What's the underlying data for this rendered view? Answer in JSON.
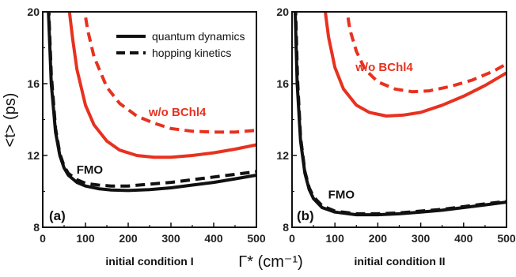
{
  "chart_data": {
    "type": "line",
    "ylabel": "<t> (ps)",
    "xlabel": "Γ* (cm⁻¹)",
    "colors": {
      "FMO": "#111111",
      "w/o BChl4": "#e8311f"
    },
    "legend": {
      "placement": "top-right of panel (a)",
      "entries": [
        {
          "label": "quantum dynamics",
          "style": "solid"
        },
        {
          "label": "hopping kinetics",
          "style": "dashed"
        }
      ]
    },
    "panels": [
      {
        "panel_label": "(a)",
        "condition_label": "initial condition I",
        "xlim": [
          0,
          500
        ],
        "ylim": [
          8,
          20
        ],
        "xticks": [
          "0",
          "100",
          "200",
          "300",
          "400",
          "500"
        ],
        "yticks": [
          "8",
          "12",
          "16",
          "20"
        ],
        "annotations": [
          {
            "text": "FMO",
            "color": "#111111",
            "at": [
              110,
              11.0
            ]
          },
          {
            "text": "w/o BChl4",
            "color": "#e8311f",
            "at": [
              315,
              14.2
            ]
          }
        ],
        "series": [
          {
            "group": "FMO",
            "style": "solid",
            "x": [
              10,
              15,
              20,
              30,
              40,
              50,
              60,
              80,
              100,
              130,
              160,
              200,
              250,
              300,
              350,
              400,
              450,
              500
            ],
            "y": [
              22,
              19.0,
              16.0,
              13.3,
              12.0,
              11.3,
              10.9,
              10.5,
              10.3,
              10.15,
              10.08,
              10.05,
              10.1,
              10.2,
              10.35,
              10.5,
              10.7,
              10.9
            ]
          },
          {
            "group": "FMO",
            "style": "dashed",
            "x": [
              12,
              15,
              20,
              30,
              40,
              50,
              60,
              80,
              100,
              130,
              160,
              200,
              250,
              300,
              350,
              400,
              450,
              500
            ],
            "y": [
              22,
              19.5,
              16.5,
              13.5,
              12.1,
              11.4,
              11.0,
              10.65,
              10.45,
              10.35,
              10.3,
              10.3,
              10.4,
              10.5,
              10.65,
              10.8,
              10.95,
              11.1
            ]
          },
          {
            "group": "w/o BChl4",
            "style": "solid",
            "x": [
              60,
              70,
              80,
              100,
              120,
              150,
              180,
              220,
              260,
              300,
              350,
              400,
              450,
              500
            ],
            "y": [
              20.5,
              18.5,
              16.8,
              14.8,
              13.7,
              12.8,
              12.3,
              12.0,
              11.9,
              11.9,
              12.0,
              12.15,
              12.35,
              12.6
            ]
          },
          {
            "group": "w/o BChl4",
            "style": "dashed",
            "x": [
              95,
              105,
              120,
              150,
              180,
              220,
              260,
              300,
              350,
              400,
              450,
              500
            ],
            "y": [
              20.5,
              19.0,
              17.5,
              15.8,
              14.9,
              14.2,
              13.8,
              13.5,
              13.35,
              13.3,
              13.3,
              13.4
            ]
          }
        ]
      },
      {
        "panel_label": "(b)",
        "condition_label": "initial condition II",
        "xlim": [
          0,
          500
        ],
        "ylim": [
          8,
          20
        ],
        "xticks": [
          "0",
          "100",
          "200",
          "300",
          "400",
          "500"
        ],
        "yticks": [
          "8",
          "12",
          "16",
          "20"
        ],
        "annotations": [
          {
            "text": "FMO",
            "color": "#111111",
            "at": [
              115,
              9.6
            ]
          },
          {
            "text": "w/o BChl4",
            "color": "#e8311f",
            "at": [
              215,
              16.7
            ]
          }
        ],
        "series": [
          {
            "group": "FMO",
            "style": "solid",
            "x": [
              5,
              8,
              12,
              20,
              30,
              40,
              50,
              70,
              100,
              150,
              200,
              250,
              300,
              350,
              400,
              450,
              500
            ],
            "y": [
              22,
              19.5,
              16.0,
              12.8,
              11.0,
              10.1,
              9.6,
              9.1,
              8.85,
              8.7,
              8.7,
              8.75,
              8.85,
              8.95,
              9.1,
              9.25,
              9.4
            ]
          },
          {
            "group": "FMO",
            "style": "dashed",
            "x": [
              6,
              9,
              13,
              20,
              30,
              40,
              50,
              70,
              100,
              150,
              200,
              250,
              300,
              350,
              400,
              450,
              500
            ],
            "y": [
              22,
              19.5,
              16.2,
              13.0,
              11.1,
              10.2,
              9.7,
              9.2,
              8.9,
              8.75,
              8.75,
              8.8,
              8.9,
              9.0,
              9.15,
              9.3,
              9.45
            ]
          },
          {
            "group": "w/o BChl4",
            "style": "solid",
            "x": [
              75,
              85,
              100,
              120,
              150,
              180,
              220,
              260,
              300,
              350,
              400,
              450,
              500
            ],
            "y": [
              20.5,
              18.6,
              16.9,
              15.7,
              14.8,
              14.4,
              14.2,
              14.25,
              14.4,
              14.8,
              15.3,
              15.9,
              16.6
            ]
          },
          {
            "group": "w/o BChl4",
            "style": "dashed",
            "x": [
              125,
              135,
              150,
              170,
              200,
              240,
              280,
              320,
              370,
              420,
              470,
              500
            ],
            "y": [
              20.5,
              19.0,
              17.8,
              16.8,
              16.1,
              15.7,
              15.55,
              15.6,
              15.85,
              16.2,
              16.7,
              17.1
            ]
          }
        ]
      }
    ]
  }
}
